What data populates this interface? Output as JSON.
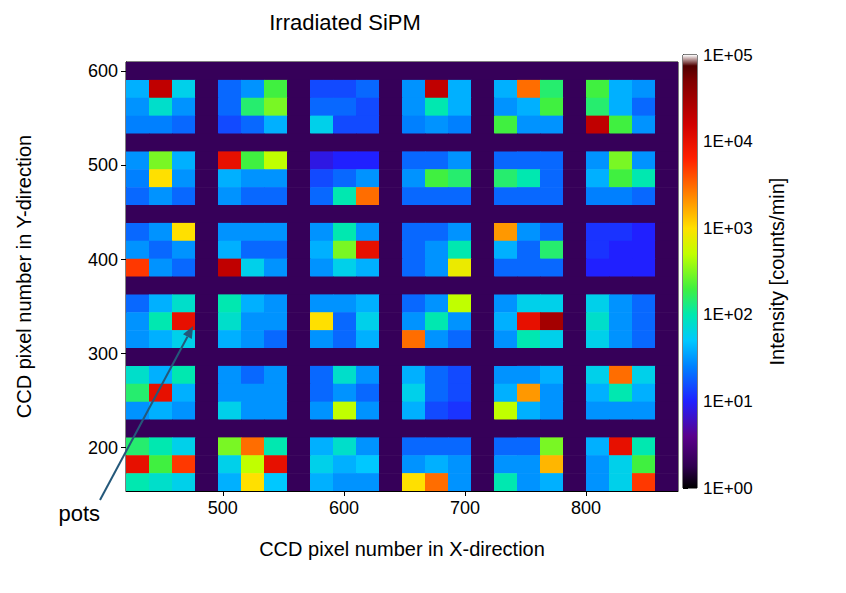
{
  "chart_data": {
    "type": "heatmap",
    "title": "Irradiated SiPM",
    "x_label": "CCD pixel number in X-direction",
    "y_label": "CCD pixel number in Y-direction",
    "xlim": [
      420,
      876
    ],
    "ylim": [
      154,
      610
    ],
    "xticks": [
      500,
      600,
      700,
      800
    ],
    "yticks": [
      200,
      300,
      400,
      500,
      600
    ],
    "grid": false,
    "x": [
      429.5,
      448.5,
      467.5,
      486.5,
      505.5,
      524.5,
      543.5,
      562.5,
      581.5,
      600.5,
      619.5,
      638.5,
      657.5,
      676.5,
      695.5,
      714.5,
      733.5,
      752.5,
      771.5,
      790.5,
      809.5,
      828.5,
      847.5,
      866.5
    ],
    "y": [
      600.5,
      581.5,
      562.5,
      543.5,
      524.5,
      505.5,
      486.5,
      467.5,
      448.5,
      429.5,
      410.5,
      391.5,
      372.5,
      353.5,
      334.5,
      315.5,
      296.5,
      277.5,
      258.5,
      239.5,
      220.5,
      201.5,
      182.5,
      163.5
    ],
    "values": [
      [
        2,
        2,
        2,
        2,
        2,
        2,
        2,
        2,
        2,
        2,
        2,
        2,
        2,
        2,
        2,
        2,
        2,
        2,
        2,
        2,
        2,
        2,
        2,
        2
      ],
      [
        40,
        20000,
        60,
        2,
        20,
        30,
        200,
        2,
        15,
        15,
        20,
        2,
        30,
        20000,
        40,
        2,
        40,
        3000,
        150,
        2,
        200,
        40,
        30,
        2
      ],
      [
        30,
        80,
        30,
        2,
        20,
        150,
        300,
        2,
        20,
        20,
        15,
        2,
        30,
        100,
        40,
        2,
        30,
        40,
        200,
        2,
        150,
        40,
        20,
        2
      ],
      [
        25,
        25,
        20,
        2,
        15,
        20,
        40,
        2,
        60,
        15,
        15,
        2,
        25,
        30,
        25,
        2,
        200,
        30,
        30,
        2,
        20000,
        200,
        30,
        2
      ],
      [
        2,
        2,
        2,
        2,
        2,
        2,
        2,
        2,
        2,
        2,
        2,
        2,
        2,
        2,
        2,
        2,
        2,
        2,
        2,
        2,
        2,
        2,
        2,
        2
      ],
      [
        30,
        300,
        40,
        2,
        10000,
        200,
        500,
        2,
        8,
        10,
        10,
        2,
        20,
        20,
        30,
        2,
        20,
        20,
        20,
        2,
        30,
        300,
        30,
        2
      ],
      [
        25,
        1000,
        30,
        2,
        40,
        30,
        30,
        2,
        15,
        20,
        30,
        2,
        30,
        200,
        150,
        2,
        150,
        100,
        20,
        2,
        40,
        200,
        100,
        2
      ],
      [
        20,
        30,
        20,
        2,
        30,
        20,
        20,
        2,
        20,
        100,
        3000,
        2,
        20,
        20,
        20,
        2,
        20,
        20,
        20,
        2,
        25,
        25,
        20,
        2
      ],
      [
        2,
        2,
        2,
        2,
        2,
        2,
        2,
        2,
        2,
        2,
        2,
        2,
        2,
        2,
        2,
        2,
        2,
        2,
        2,
        2,
        2,
        2,
        2,
        2
      ],
      [
        20,
        30,
        1000,
        2,
        30,
        30,
        30,
        2,
        30,
        100,
        30,
        2,
        20,
        20,
        30,
        2,
        2000,
        30,
        20,
        2,
        12,
        12,
        10,
        2
      ],
      [
        30,
        20,
        30,
        2,
        40,
        20,
        20,
        2,
        40,
        300,
        10000,
        2,
        20,
        30,
        100,
        2,
        40,
        20,
        150,
        2,
        12,
        10,
        10,
        2
      ],
      [
        5000,
        30,
        20,
        2,
        20000,
        60,
        30,
        2,
        30,
        60,
        40,
        2,
        20,
        30,
        800,
        2,
        20,
        20,
        20,
        2,
        10,
        10,
        10,
        2
      ],
      [
        2,
        2,
        2,
        2,
        2,
        2,
        2,
        2,
        2,
        2,
        2,
        2,
        2,
        2,
        2,
        2,
        2,
        2,
        2,
        2,
        2,
        2,
        2,
        2
      ],
      [
        20,
        40,
        80,
        2,
        100,
        40,
        30,
        2,
        30,
        30,
        40,
        2,
        20,
        30,
        500,
        2,
        30,
        60,
        60,
        2,
        60,
        30,
        20,
        2
      ],
      [
        30,
        100,
        10000,
        2,
        80,
        30,
        30,
        2,
        1000,
        20,
        60,
        2,
        30,
        100,
        30,
        2,
        40,
        10000,
        30000,
        2,
        80,
        30,
        20,
        2
      ],
      [
        30,
        40,
        60,
        2,
        40,
        30,
        20,
        2,
        30,
        20,
        40,
        2,
        3000,
        30,
        20,
        2,
        30,
        100,
        60,
        2,
        60,
        30,
        20,
        2
      ],
      [
        2,
        2,
        2,
        2,
        2,
        2,
        2,
        2,
        2,
        2,
        2,
        2,
        2,
        2,
        2,
        2,
        2,
        2,
        2,
        2,
        2,
        2,
        2,
        2
      ],
      [
        80,
        40,
        100,
        2,
        30,
        20,
        30,
        2,
        20,
        80,
        30,
        2,
        40,
        20,
        15,
        2,
        30,
        30,
        40,
        2,
        60,
        3000,
        60,
        2
      ],
      [
        150,
        10000,
        40,
        2,
        30,
        30,
        30,
        2,
        20,
        30,
        20,
        2,
        60,
        20,
        15,
        2,
        40,
        2000,
        30,
        2,
        40,
        100,
        40,
        2
      ],
      [
        30,
        40,
        30,
        2,
        60,
        30,
        30,
        2,
        30,
        500,
        30,
        2,
        40,
        15,
        12,
        2,
        500,
        40,
        30,
        2,
        30,
        30,
        30,
        2
      ],
      [
        2,
        2,
        2,
        2,
        2,
        2,
        2,
        2,
        2,
        2,
        2,
        2,
        2,
        2,
        2,
        2,
        2,
        2,
        2,
        2,
        2,
        2,
        2,
        2
      ],
      [
        150,
        100,
        60,
        2,
        300,
        3000,
        100,
        2,
        40,
        80,
        30,
        2,
        20,
        20,
        20,
        2,
        20,
        20,
        300,
        2,
        40,
        10000,
        100,
        2
      ],
      [
        10000,
        200,
        5000,
        2,
        60,
        500,
        10000,
        2,
        60,
        40,
        50,
        2,
        30,
        40,
        30,
        2,
        30,
        30,
        1500,
        2,
        30,
        60,
        200,
        2
      ],
      [
        100,
        80,
        60,
        2,
        40,
        1000,
        50,
        2,
        40,
        30,
        30,
        2,
        1000,
        3000,
        30,
        2,
        100,
        30,
        40,
        2,
        30,
        60,
        5000,
        2
      ]
    ],
    "colorbar": {
      "label": "Intensity [counts/min]",
      "range": [
        1,
        100000
      ],
      "log": true,
      "ticks": [
        {
          "value": 1,
          "label": "1E+00"
        },
        {
          "value": 10,
          "label": "1E+01"
        },
        {
          "value": 100,
          "label": "1E+02"
        },
        {
          "value": 1000,
          "label": "1E+03"
        },
        {
          "value": 10000,
          "label": "1E+04"
        },
        {
          "value": 100000,
          "label": "1E+05"
        }
      ]
    },
    "annotations": [
      {
        "text": "pots",
        "x": 477,
        "y": 333
      }
    ]
  }
}
